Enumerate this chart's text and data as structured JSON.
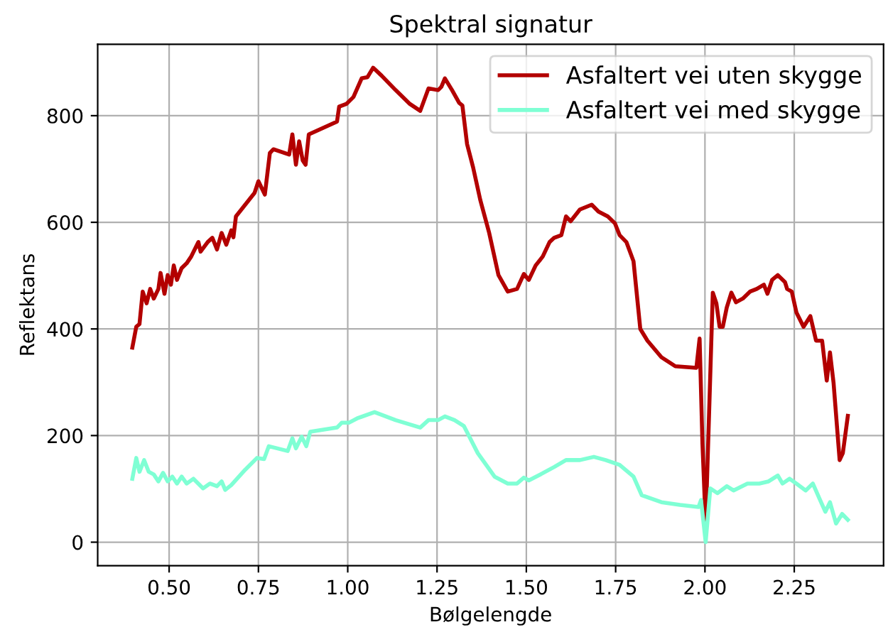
{
  "chart_data": {
    "type": "line",
    "title": "Spektral signatur",
    "xlabel": "Bølgelengde",
    "ylabel": "Reflektans",
    "xlim": [
      0.3,
      2.5
    ],
    "ylim": [
      -44,
      934
    ],
    "xticks": [
      {
        "value": 0.5,
        "label": "0.50"
      },
      {
        "value": 0.75,
        "label": "0.75"
      },
      {
        "value": 1.0,
        "label": "1.00"
      },
      {
        "value": 1.25,
        "label": "1.25"
      },
      {
        "value": 1.5,
        "label": "1.50"
      },
      {
        "value": 1.75,
        "label": "1.75"
      },
      {
        "value": 2.0,
        "label": "2.00"
      },
      {
        "value": 2.25,
        "label": "2.25"
      }
    ],
    "yticks": [
      0,
      200,
      400,
      600,
      800
    ],
    "grid": true,
    "legend": "top right",
    "marker": "none",
    "line_style": "solid",
    "series": [
      {
        "name": "Asfaltert vei uten skygge",
        "color": "#b30000",
        "x": [
          0.397,
          0.408,
          0.417,
          0.426,
          0.437,
          0.447,
          0.457,
          0.47,
          0.476,
          0.487,
          0.496,
          0.505,
          0.513,
          0.522,
          0.535,
          0.549,
          0.562,
          0.582,
          0.588,
          0.608,
          0.621,
          0.634,
          0.647,
          0.66,
          0.674,
          0.68,
          0.687,
          0.739,
          0.75,
          0.768,
          0.782,
          0.792,
          0.836,
          0.845,
          0.855,
          0.864,
          0.874,
          0.882,
          0.891,
          0.97,
          0.976,
          0.996,
          1.016,
          1.039,
          1.055,
          1.071,
          1.095,
          1.134,
          1.174,
          1.203,
          1.226,
          1.253,
          1.262,
          1.272,
          1.292,
          1.312,
          1.321,
          1.334,
          1.351,
          1.371,
          1.396,
          1.422,
          1.448,
          1.474,
          1.493,
          1.507,
          1.526,
          1.546,
          1.565,
          1.578,
          1.598,
          1.611,
          1.624,
          1.65,
          1.683,
          1.702,
          1.728,
          1.748,
          1.761,
          1.78,
          1.8,
          1.819,
          1.839,
          1.878,
          1.917,
          1.976,
          1.985,
          1.993,
          2.002,
          2.011,
          2.022,
          2.032,
          2.041,
          2.05,
          2.061,
          2.074,
          2.087,
          2.106,
          2.126,
          2.145,
          2.165,
          2.175,
          2.188,
          2.204,
          2.224,
          2.23,
          2.243,
          2.256,
          2.276,
          2.295,
          2.311,
          2.328,
          2.341,
          2.35,
          2.36,
          2.377,
          2.386,
          2.4
        ],
        "values": [
          365,
          404,
          409,
          470,
          448,
          475,
          457,
          475,
          505,
          466,
          501,
          483,
          519,
          492,
          514,
          523,
          536,
          563,
          545,
          563,
          571,
          549,
          580,
          558,
          585,
          572,
          611,
          655,
          677,
          652,
          730,
          737,
          727,
          765,
          708,
          752,
          716,
          708,
          765,
          789,
          817,
          822,
          835,
          870,
          872,
          890,
          875,
          848,
          822,
          809,
          851,
          848,
          854,
          870,
          848,
          824,
          819,
          747,
          703,
          642,
          580,
          501,
          470,
          475,
          503,
          492,
          519,
          536,
          563,
          571,
          576,
          611,
          602,
          624,
          633,
          620,
          611,
          598,
          576,
          563,
          527,
          400,
          378,
          347,
          330,
          327,
          382,
          185,
          35,
          229,
          468,
          448,
          404,
          404,
          440,
          468,
          450,
          457,
          470,
          475,
          483,
          466,
          492,
          501,
          488,
          475,
          470,
          431,
          404,
          424,
          378,
          378,
          303,
          356,
          299,
          154,
          167,
          237
        ]
      },
      {
        "name": "Asfaltert vei med skygge",
        "color": "#7fffd4",
        "x": [
          0.397,
          0.408,
          0.417,
          0.43,
          0.443,
          0.457,
          0.47,
          0.483,
          0.496,
          0.509,
          0.522,
          0.535,
          0.549,
          0.568,
          0.595,
          0.614,
          0.634,
          0.647,
          0.657,
          0.674,
          0.713,
          0.746,
          0.766,
          0.779,
          0.832,
          0.845,
          0.855,
          0.871,
          0.884,
          0.895,
          0.97,
          0.983,
          1.003,
          1.029,
          1.075,
          1.134,
          1.203,
          1.226,
          1.253,
          1.272,
          1.299,
          1.325,
          1.364,
          1.411,
          1.448,
          1.474,
          1.493,
          1.507,
          1.539,
          1.578,
          1.611,
          1.65,
          1.689,
          1.722,
          1.761,
          1.8,
          1.823,
          1.878,
          1.93,
          1.982,
          1.989,
          2.002,
          2.015,
          2.035,
          2.061,
          2.08,
          2.119,
          2.152,
          2.178,
          2.204,
          2.217,
          2.237,
          2.256,
          2.282,
          2.302,
          2.321,
          2.337,
          2.35,
          2.367,
          2.384,
          2.4
        ],
        "values": [
          119,
          158,
          132,
          154,
          132,
          127,
          114,
          130,
          114,
          123,
          110,
          123,
          110,
          119,
          101,
          110,
          105,
          114,
          98,
          107,
          136,
          158,
          156,
          180,
          171,
          195,
          176,
          198,
          180,
          207,
          215,
          224,
          224,
          233,
          244,
          229,
          215,
          229,
          229,
          236,
          229,
          218,
          167,
          123,
          110,
          110,
          121,
          116,
          127,
          141,
          154,
          154,
          160,
          154,
          145,
          123,
          88,
          75,
          70,
          66,
          79,
          0,
          101,
          92,
          105,
          97,
          110,
          110,
          114,
          125,
          110,
          119,
          110,
          97,
          110,
          81,
          57,
          75,
          35,
          53,
          42
        ]
      }
    ]
  }
}
